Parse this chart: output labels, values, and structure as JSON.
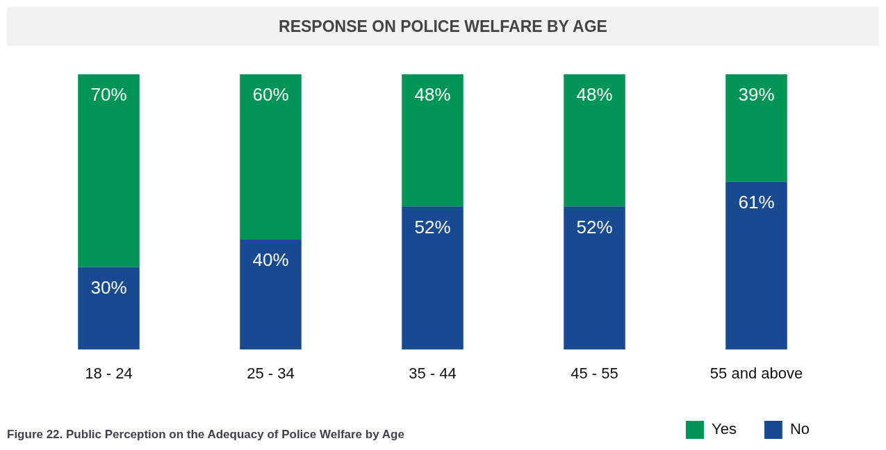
{
  "chart_data": {
    "type": "bar",
    "title": "RESPONSE ON POLICE WELFARE BY AGE",
    "categories": [
      "18 - 24",
      "25 - 34",
      "35 - 44",
      "45 - 55",
      "55 and above"
    ],
    "stacked": true,
    "ylim": [
      0,
      100
    ],
    "tick_labels": "x",
    "legend": "bottom right",
    "series": [
      {
        "name": "No",
        "color": "#174a91",
        "values": [
          30,
          40,
          52,
          52,
          61
        ],
        "value_labels": [
          "30%",
          "40%",
          "52%",
          "52%",
          "61%"
        ]
      },
      {
        "name": "Yes",
        "color": "#009456",
        "values": [
          70,
          60,
          48,
          48,
          39
        ],
        "value_labels": [
          "70%",
          "60%",
          "48%",
          "48%",
          "39%"
        ]
      }
    ],
    "annotations": [
      "Figure 22. Public Perception on the Adequacy of Police Welfare by Age"
    ]
  }
}
